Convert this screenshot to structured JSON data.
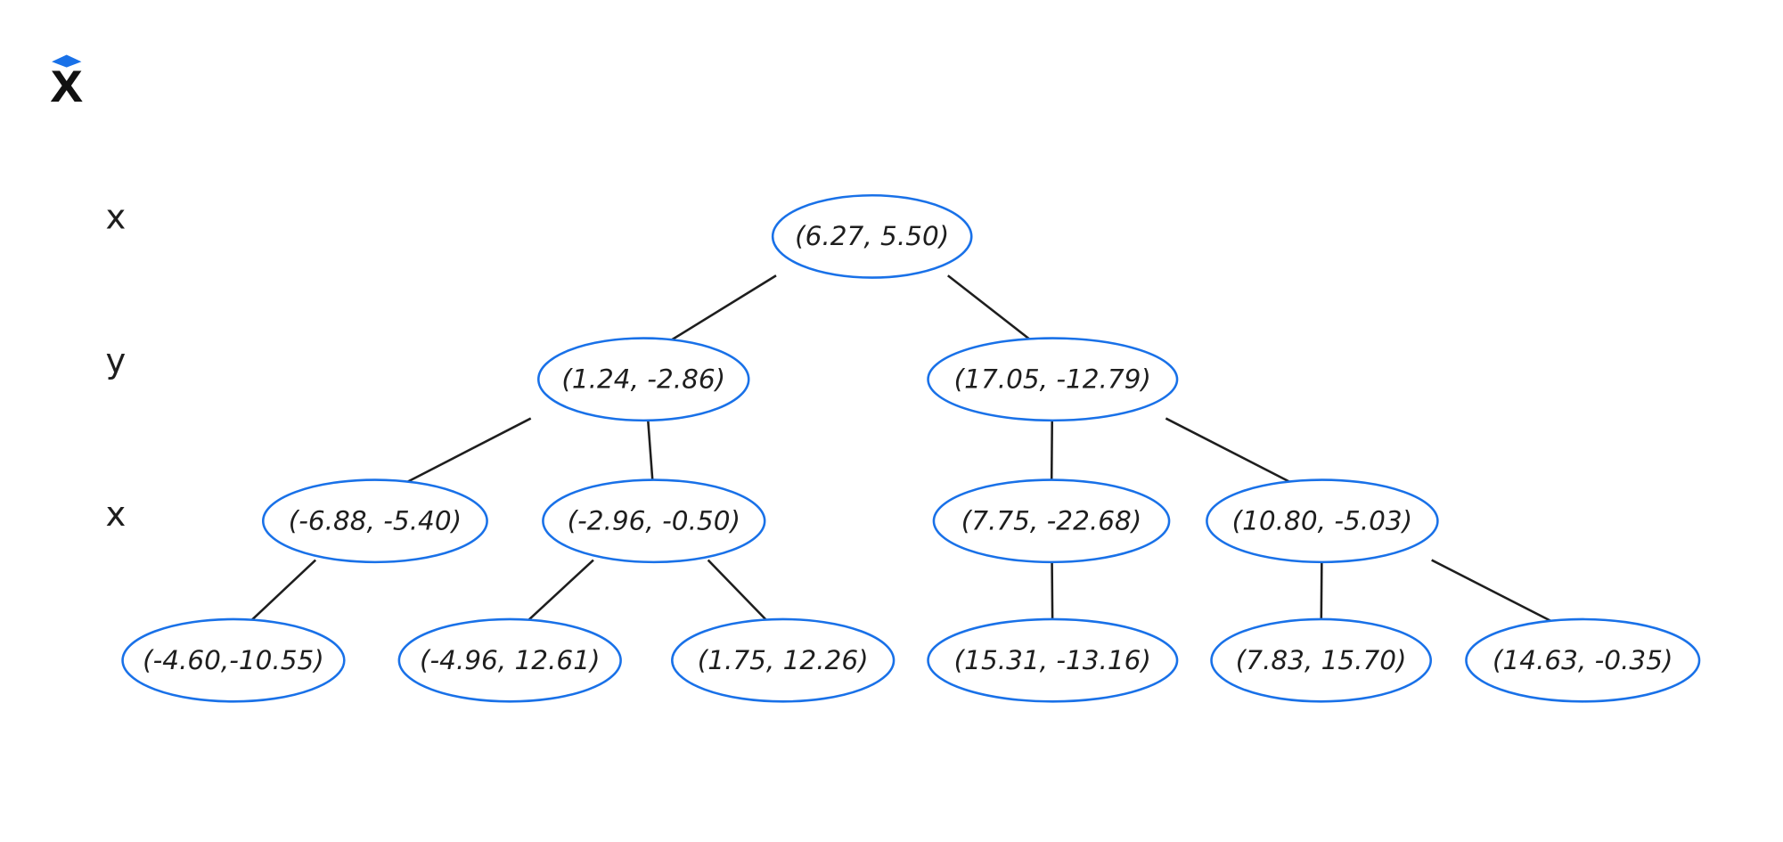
{
  "levels": [
    "x",
    "y",
    "x"
  ],
  "nodes": [
    {
      "label": "(6.27, 5.50)"
    },
    {
      "label": "(1.24, -2.86)"
    },
    {
      "label": "(17.05, -12.79)"
    },
    {
      "label": "(-6.88, -5.40)"
    },
    {
      "label": "(-2.96, -0.50)"
    },
    {
      "label": "(7.75, -22.68)"
    },
    {
      "label": "(10.80, -5.03)"
    },
    {
      "label": "(-4.60,-10.55)"
    },
    {
      "label": "(-4.96, 12.61)"
    },
    {
      "label": "(1.75, 12.26)"
    },
    {
      "label": "(15.31, -13.16)"
    },
    {
      "label": "(7.83, 15.70)"
    },
    {
      "label": "(14.63, -0.35)"
    }
  ]
}
